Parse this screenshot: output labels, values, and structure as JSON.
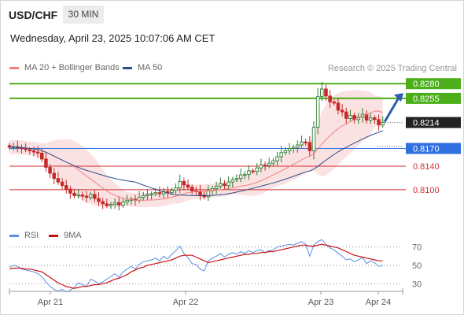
{
  "header": {
    "symbol": "USD/CHF",
    "timeframe": "30 MIN",
    "datetime": "Wednesday, April 23, 2025 10:07:06 AM CET"
  },
  "legend": {
    "items": [
      {
        "label": "MA 20 + Bollinger Bands",
        "color": "#f08080"
      },
      {
        "label": "MA 50",
        "color": "#2b4d8c"
      }
    ],
    "credit": "Research © 2025 Trading Central"
  },
  "colors": {
    "up": "#2e7d32",
    "down": "#c62828",
    "target": "#4caf1a",
    "current": "#222222",
    "pivot": "#2f6fe0",
    "support": "#d32f2f",
    "arrow": "#2f5ea8"
  },
  "chart_data": [
    {
      "type": "candlestick",
      "title": "USD/CHF",
      "timeframe": "30 MIN",
      "ylim": [
        0.8045,
        0.8295
      ],
      "x_labels": [
        "Apr 21",
        "Apr 22",
        "Apr 23",
        "Apr 24"
      ],
      "close_path": [
        0.8172,
        0.8173,
        0.8171,
        0.817,
        0.8168,
        0.8166,
        0.8164,
        0.8162,
        0.8152,
        0.8138,
        0.8128,
        0.8119,
        0.8113,
        0.8107,
        0.8101,
        0.8094,
        0.809,
        0.8091,
        0.8089,
        0.8087,
        0.8092,
        0.8085,
        0.808,
        0.8076,
        0.8073,
        0.8075,
        0.8078,
        0.8074,
        0.8079,
        0.8082,
        0.8084,
        0.8082,
        0.8087,
        0.809,
        0.8092,
        0.8093,
        0.8095,
        0.8093,
        0.8097,
        0.8095,
        0.8099,
        0.8103,
        0.8114,
        0.8108,
        0.8104,
        0.8098,
        0.8097,
        0.8091,
        0.8088,
        0.8098,
        0.8102,
        0.8106,
        0.811,
        0.8107,
        0.8113,
        0.8117,
        0.8119,
        0.8125,
        0.8126,
        0.8132,
        0.8131,
        0.8137,
        0.8142,
        0.8141,
        0.8145,
        0.8149,
        0.8156,
        0.8163,
        0.8166,
        0.817,
        0.8172,
        0.8176,
        0.8181,
        0.818,
        0.8166,
        0.8206,
        0.8258,
        0.8271,
        0.8259,
        0.8249,
        0.8247,
        0.8235,
        0.8232,
        0.8221,
        0.8226,
        0.8219,
        0.8223,
        0.8228,
        0.8218,
        0.8222,
        0.8219,
        0.821,
        0.8214
      ],
      "levels": [
        {
          "label": "0.8280",
          "value": 0.828,
          "role": "target"
        },
        {
          "label": "0.8255",
          "value": 0.8255,
          "role": "target"
        },
        {
          "label": "0.8214",
          "value": 0.8214,
          "role": "current"
        },
        {
          "label": "0.8170",
          "value": 0.817,
          "role": "pivot"
        },
        {
          "label": "0.8140",
          "value": 0.814,
          "role": "support"
        },
        {
          "label": "0.8100",
          "value": 0.81,
          "role": "support"
        }
      ],
      "indicators": [
        "MA 20 + Bollinger Bands",
        "MA 50"
      ]
    },
    {
      "type": "line",
      "title": "",
      "ylim": [
        20,
        80
      ],
      "y_ticks": [
        "70",
        "50",
        "30"
      ],
      "series": [
        {
          "name": "RSI",
          "color": "#5b8de0",
          "values": [
            48,
            50,
            49,
            46,
            45,
            44,
            43,
            41,
            38,
            32,
            27,
            24,
            22,
            24,
            21,
            23,
            26,
            31,
            29,
            27,
            35,
            33,
            30,
            32,
            35,
            38,
            41,
            37,
            43,
            46,
            49,
            46,
            51,
            54,
            55,
            56,
            58,
            55,
            60,
            57,
            62,
            66,
            71,
            63,
            58,
            52,
            51,
            46,
            44,
            55,
            58,
            60,
            63,
            59,
            62,
            64,
            62,
            65,
            63,
            66,
            64,
            66,
            67,
            64,
            66,
            67,
            70,
            71,
            72,
            73,
            72,
            74,
            76,
            73,
            60,
            72,
            76,
            78,
            73,
            69,
            67,
            63,
            60,
            56,
            57,
            54,
            56,
            59,
            52,
            55,
            53,
            49,
            50
          ]
        },
        {
          "name": "9MA",
          "color": "#cc1111",
          "values": [
            46,
            47,
            47,
            47,
            46,
            46,
            45,
            44,
            43,
            40,
            37,
            34,
            31,
            29,
            27,
            26,
            25,
            26,
            27,
            27,
            28,
            29,
            29,
            30,
            31,
            33,
            35,
            36,
            38,
            40,
            43,
            45,
            47,
            48,
            50,
            51,
            52,
            53,
            54,
            55,
            56,
            58,
            60,
            61,
            61,
            61,
            59,
            57,
            55,
            53,
            54,
            55,
            56,
            57,
            58,
            59,
            60,
            61,
            62,
            62,
            63,
            63,
            64,
            64,
            65,
            65,
            66,
            67,
            68,
            69,
            70,
            71,
            72,
            72,
            71,
            71,
            72,
            73,
            72,
            71,
            70,
            69,
            67,
            65,
            63,
            61,
            60,
            59,
            58,
            57,
            56,
            55,
            55
          ]
        }
      ]
    }
  ]
}
